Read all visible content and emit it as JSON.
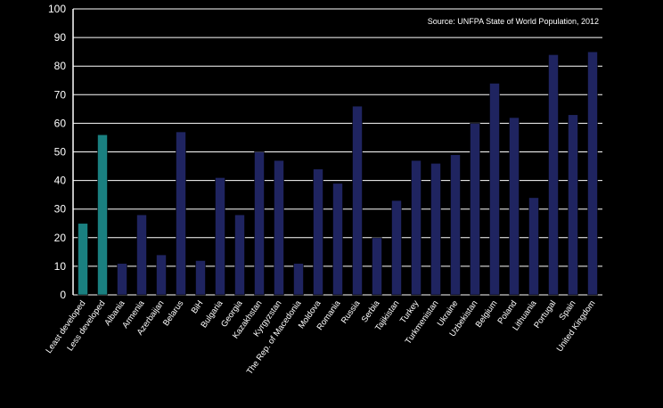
{
  "chart_data": {
    "type": "bar",
    "source": "Source: UNFPA State of World Population, 2012",
    "categories": [
      "Least developed",
      "Less developed",
      "Albania",
      "Armenia",
      "Azerbaijan",
      "Belarus",
      "BiH",
      "Bulgaria",
      "Georgia",
      "Kazakhstan",
      "Kyrgyzstan",
      "The Rep. of Macedonia",
      "Moldova",
      "Romania",
      "Russia",
      "Serbia",
      "Tajikistan",
      "Turkey",
      "Turkmenistan",
      "Ukraine",
      "Uzbekistan",
      "Belgium",
      "Poland",
      "Lithuania",
      "Portugal",
      "Spain",
      "United Kingdom"
    ],
    "values": [
      25,
      56,
      11,
      28,
      14,
      57,
      12,
      41,
      28,
      50,
      47,
      11,
      44,
      39,
      66,
      20,
      33,
      47,
      46,
      49,
      60,
      74,
      62,
      34,
      84,
      63,
      85
    ],
    "highlight_count": 2,
    "ylim": [
      0,
      100
    ],
    "yticks": [
      0,
      10,
      20,
      30,
      40,
      50,
      60,
      70,
      80,
      90,
      100
    ],
    "grid": true,
    "colors": {
      "highlight": "#1a8080",
      "bar": "#1f2460",
      "grid": "#ffffff"
    }
  }
}
